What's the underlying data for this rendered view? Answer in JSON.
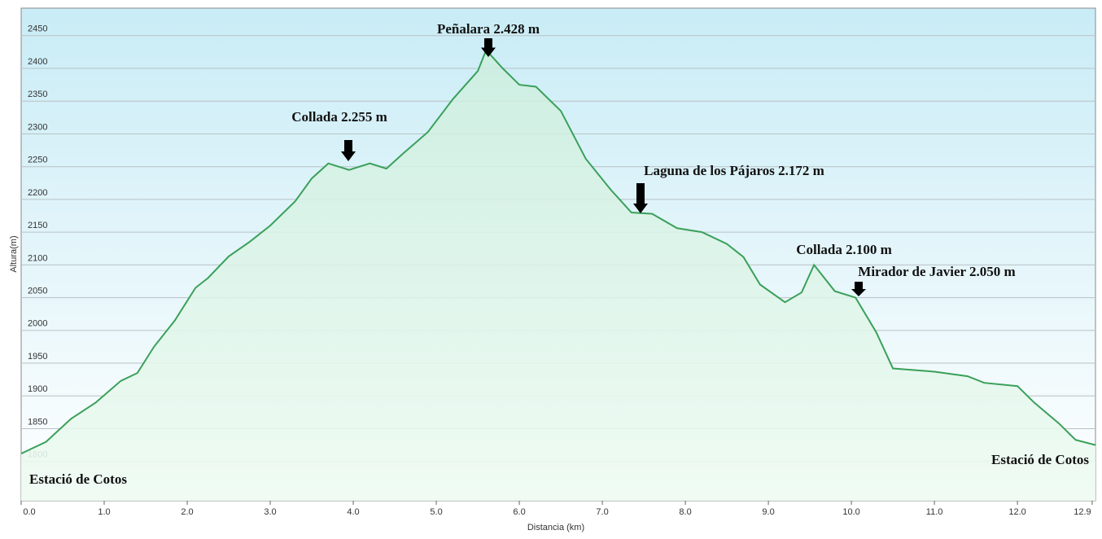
{
  "chart_data": {
    "type": "area",
    "x_label": "Distancia  (km)",
    "y_label": "Altura(m)",
    "xlim": [
      0,
      12.94
    ],
    "ylim": [
      1740,
      2492
    ],
    "xticks": [
      {
        "value": 0,
        "label": "0.0"
      },
      {
        "value": 1,
        "label": "1.0"
      },
      {
        "value": 2,
        "label": "2.0"
      },
      {
        "value": 3,
        "label": "3.0"
      },
      {
        "value": 4,
        "label": "4.0"
      },
      {
        "value": 5,
        "label": "5.0"
      },
      {
        "value": 6,
        "label": "6.0"
      },
      {
        "value": 7,
        "label": "7.0"
      },
      {
        "value": 8,
        "label": "8.0"
      },
      {
        "value": 9,
        "label": "9.0"
      },
      {
        "value": 10,
        "label": "10.0"
      },
      {
        "value": 11,
        "label": "11.0"
      },
      {
        "value": 12,
        "label": "12.0"
      },
      12.9
    ],
    "yticks": [
      1800,
      1850,
      1900,
      1950,
      2000,
      2050,
      2100,
      2150,
      2200,
      2250,
      2300,
      2350,
      2400,
      2450
    ],
    "grid": true,
    "x": [
      0,
      0.3,
      0.6,
      0.9,
      1.2,
      1.4,
      1.6,
      1.85,
      2.1,
      2.25,
      2.5,
      2.75,
      3.0,
      3.3,
      3.5,
      3.7,
      3.95,
      4.2,
      4.4,
      4.6,
      4.9,
      5.2,
      5.5,
      5.6,
      5.8,
      6.0,
      6.2,
      6.5,
      6.8,
      7.1,
      7.35,
      7.6,
      7.9,
      8.2,
      8.5,
      8.7,
      8.9,
      9.2,
      9.4,
      9.55,
      9.8,
      10.05,
      10.3,
      10.5,
      11.0,
      11.4,
      11.6,
      12.0,
      12.2,
      12.5,
      12.7,
      12.94
    ],
    "series": [
      {
        "color": "#3aa05a",
        "values": [
          1812,
          1830,
          1865,
          1890,
          1923,
          1935,
          1975,
          2015,
          2065,
          2080,
          2113,
          2135,
          2160,
          2197,
          2232,
          2255,
          2245,
          2255,
          2247,
          2270,
          2303,
          2353,
          2396,
          2428,
          2400,
          2375,
          2372,
          2335,
          2262,
          2215,
          2180,
          2178,
          2156,
          2150,
          2132,
          2112,
          2070,
          2043,
          2058,
          2100,
          2060,
          2050,
          1997,
          1942,
          1937,
          1930,
          1920,
          1915,
          1890,
          1858,
          1833,
          1825
        ]
      }
    ],
    "annotations": [
      "Peñalara 2.428 m",
      "Collada 2.255 m",
      "Laguna de los Pájaros 2.172 m",
      "Collada 2.100 m",
      "Mirador de Javier 2.050 m",
      "Estació de Cotos",
      "Estació de Cotos"
    ]
  }
}
